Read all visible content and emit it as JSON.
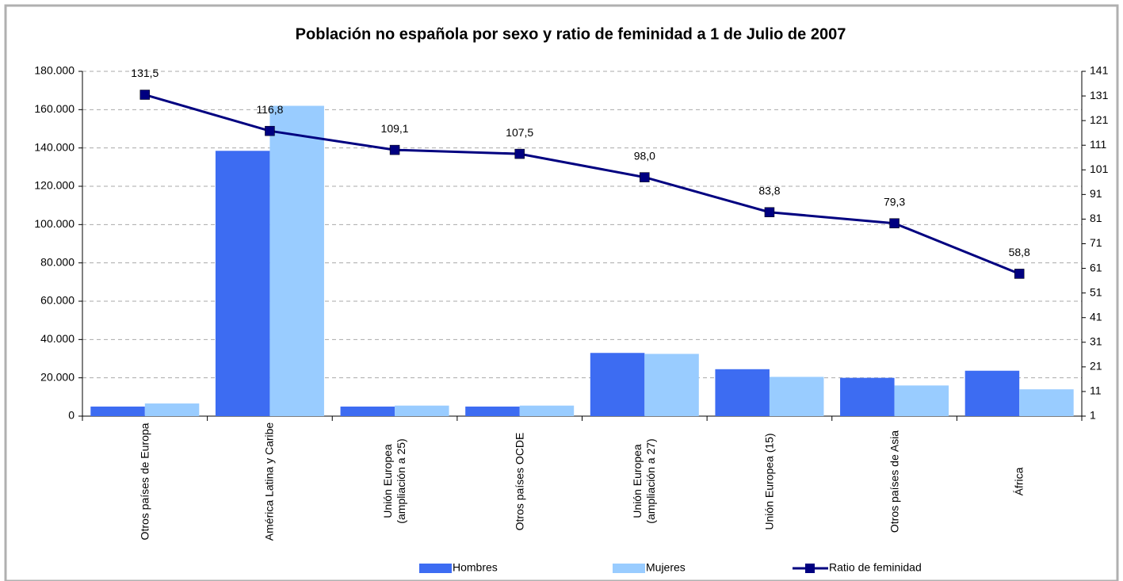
{
  "chart_data": {
    "type": "bar",
    "title": "Población no española por sexo y ratio de feminidad a 1 de Julio de 2007",
    "categories": [
      "Otros países de Europa",
      "América Latina y Caribe",
      "Unión Europea (ampliación a 25)",
      "Otros países OCDE",
      "Unión Europea (ampliación a 27)",
      "Unión Europea  (15)",
      "Otros países de Asia",
      "África"
    ],
    "series": [
      {
        "name": "Hombres",
        "type": "bar",
        "color": "#3d6cf2",
        "values": [
          5000,
          138500,
          5000,
          5000,
          33000,
          24500,
          20000,
          23700
        ]
      },
      {
        "name": "Mujeres",
        "type": "bar",
        "color": "#99ccff",
        "values": [
          6600,
          162000,
          5500,
          5500,
          32500,
          20500,
          16000,
          14000
        ]
      },
      {
        "name": "Ratio de feminidad",
        "type": "line",
        "axis": "y2",
        "color": "#000080",
        "values": [
          131.5,
          116.8,
          109.1,
          107.5,
          98.0,
          83.8,
          79.3,
          58.8
        ],
        "value_labels": [
          "131,5",
          "116,8",
          "109,1",
          "107,5",
          "98,0",
          "83,8",
          "79,3",
          "58,8"
        ]
      }
    ],
    "ylim": [
      0,
      180000
    ],
    "yticks": [
      0,
      {
        "value": 20000,
        "label": "20.000"
      },
      {
        "value": 40000,
        "label": "40.000"
      },
      {
        "value": 60000,
        "label": "60.000"
      },
      {
        "value": 80000,
        "label": "80.000"
      },
      {
        "value": 100000,
        "label": "100.000"
      },
      {
        "value": 120000,
        "label": "120.000"
      },
      {
        "value": 140000,
        "label": "140.000"
      },
      {
        "value": 160000,
        "label": "160.000"
      },
      {
        "value": 180000,
        "label": "180.000"
      }
    ],
    "y2lim": [
      1,
      141
    ],
    "y2ticks": [
      1,
      11,
      21,
      31,
      41,
      51,
      61,
      71,
      81,
      91,
      101,
      111,
      121,
      131,
      141
    ],
    "grid": true,
    "legend": "bottom"
  }
}
